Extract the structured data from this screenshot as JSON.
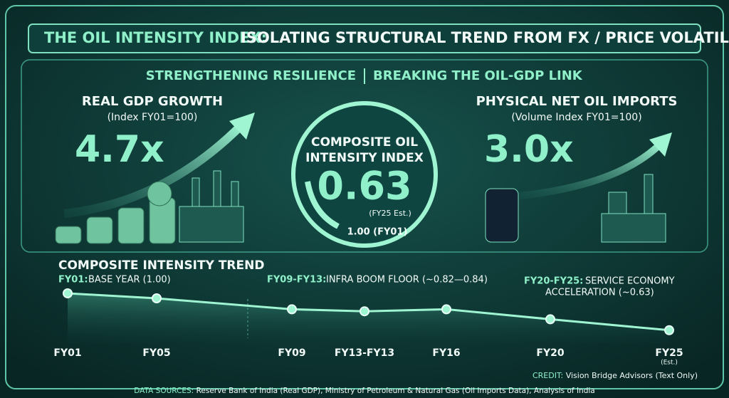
{
  "header": {
    "title_lead": "THE OIL INTENSITY INDEX:",
    "title_rest": "ISOLATING STRUCTURAL TREND FROM FX / PRICE VOLATILITY"
  },
  "banner": {
    "left": "STRENGTHENING RESILIENCE",
    "right": "BREAKING THE OIL-GDP LINK"
  },
  "gdp": {
    "title": "REAL GDP GROWTH",
    "subtitle": "(Index FY01=100)",
    "value": "4.7x"
  },
  "center": {
    "title_line1": "COMPOSITE OIL",
    "title_line2": "INTENSITY INDEX",
    "value": "0.63",
    "value_note": "(FY25 Est.)",
    "base": "1.00 (FY01)"
  },
  "imports": {
    "title": "PHYSICAL NET OIL IMPORTS",
    "subtitle": "(Volume Index FY01=100)",
    "value": "3.0x"
  },
  "chart_data": {
    "type": "line",
    "title": "COMPOSITE INTENSITY TREND",
    "categories": [
      "FY01",
      "FY05",
      "FY09",
      "FY13-FY13",
      "FY16",
      "FY20",
      "FY25"
    ],
    "values": [
      1.0,
      0.95,
      0.84,
      0.82,
      0.84,
      0.74,
      0.63
    ],
    "color": "#9ff5d2",
    "est_note": "(Est.)",
    "annotations": [
      {
        "lead": "FY01:",
        "text": "BASE YEAR (1.00)"
      },
      {
        "lead": "FY09-FY13:",
        "text": "INFRA BOOM FLOOR (~0.82—0.84)"
      },
      {
        "lead": "FY20-FY25:",
        "text": "SERVICE ECONOMY",
        "text2": "ACCELERATION (~0.63)"
      }
    ]
  },
  "footer": {
    "credit_lead": "CREDIT:",
    "credit": "Vision Bridge Advisors (Text Only)",
    "sources_lead": "DATA SOURCES:",
    "sources": "Reserve Bank of India (Real GDP), Ministry of Petroleum & Natural Gas (Oil Imports Data), Analysis of India"
  }
}
